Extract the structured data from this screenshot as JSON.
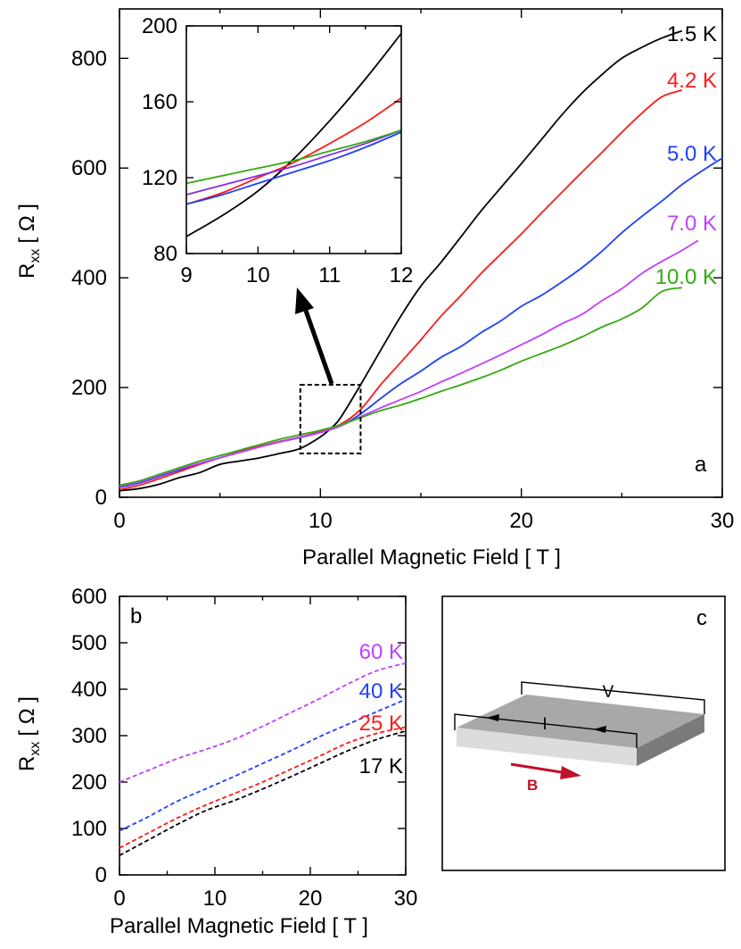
{
  "chart_data": [
    {
      "id": "a",
      "type": "line",
      "panel_letter": "a",
      "xlabel": "Parallel Magnetic Field [ T ]",
      "ylabel": "R_xx [ Ω ]",
      "ylabel_main": "R",
      "ylabel_sub": "xx",
      "ylabel_unit": "[ Ω ]",
      "xlim": [
        0,
        30
      ],
      "ylim": [
        0,
        890
      ],
      "xticks": [
        0,
        10,
        20,
        30
      ],
      "yticks": [
        0,
        200,
        400,
        600,
        800
      ],
      "annotation": {
        "type": "dashed-box-with-arrow",
        "box_x": [
          9,
          12
        ],
        "box_y": [
          80,
          205
        ]
      },
      "series": [
        {
          "name": "1.5 K",
          "color": "#000000",
          "x": [
            0,
            1,
            2,
            3,
            4,
            5,
            6,
            7,
            8,
            9,
            10,
            10.5,
            11,
            12,
            13,
            14,
            15,
            16,
            17,
            18,
            19,
            20,
            21,
            22,
            23,
            24,
            25,
            26,
            27,
            28
          ],
          "y": [
            12,
            16,
            24,
            36,
            45,
            60,
            66,
            72,
            80,
            89,
            110,
            125,
            145,
            205,
            268,
            330,
            385,
            428,
            475,
            522,
            565,
            608,
            652,
            696,
            736,
            770,
            800,
            820,
            837,
            850
          ]
        },
        {
          "name": "4.2 K",
          "color": "#ff1a1a",
          "x": [
            0,
            1,
            2,
            3,
            4,
            5,
            6,
            7,
            8,
            9,
            10,
            11,
            12,
            13,
            14,
            15,
            16,
            17,
            18,
            19,
            20,
            21,
            22,
            23,
            24,
            25,
            26,
            27,
            28
          ],
          "y": [
            14,
            22,
            34,
            47,
            60,
            72,
            83,
            93,
            102,
            110,
            120,
            133,
            160,
            205,
            246,
            287,
            330,
            368,
            408,
            444,
            480,
            518,
            555,
            592,
            628,
            665,
            700,
            730,
            742
          ]
        },
        {
          "name": "5.0 K",
          "color": "#2040ff",
          "x": [
            0,
            1,
            2,
            3,
            4,
            5,
            6,
            7,
            8,
            9,
            10,
            11,
            12,
            13,
            14,
            15,
            16,
            17,
            18,
            19,
            20,
            21,
            22,
            23,
            24,
            25,
            26,
            27,
            28,
            29,
            30
          ],
          "y": [
            18,
            26,
            38,
            50,
            62,
            72,
            82,
            92,
            101,
            109,
            118,
            130,
            152,
            180,
            207,
            230,
            255,
            275,
            300,
            322,
            348,
            368,
            392,
            418,
            448,
            482,
            512,
            540,
            570,
            595,
            618
          ]
        },
        {
          "name": "7.0 K",
          "color": "#c040ff",
          "x": [
            0,
            1,
            2,
            3,
            4,
            5,
            6,
            7,
            8,
            9,
            10,
            11,
            12,
            13,
            14,
            15,
            16,
            17,
            18,
            19,
            20,
            21,
            22,
            23,
            24,
            25,
            26,
            27,
            28,
            28.8
          ],
          "y": [
            20,
            28,
            40,
            52,
            62,
            72,
            82,
            92,
            101,
            110,
            118,
            130,
            147,
            163,
            178,
            193,
            210,
            226,
            243,
            260,
            278,
            296,
            316,
            333,
            358,
            380,
            408,
            430,
            450,
            468
          ]
        },
        {
          "name": "10.0 K",
          "color": "#33aa11",
          "x": [
            0,
            1,
            2,
            3,
            4,
            5,
            6,
            7,
            8,
            9,
            10,
            11,
            12,
            13,
            14,
            15,
            16,
            17,
            18,
            19,
            20,
            21,
            22,
            23,
            24,
            25,
            26,
            27,
            28
          ],
          "y": [
            22,
            30,
            42,
            54,
            66,
            76,
            86,
            96,
            106,
            114,
            122,
            132,
            145,
            158,
            168,
            180,
            193,
            205,
            218,
            232,
            248,
            262,
            276,
            292,
            310,
            325,
            345,
            375,
            382
          ]
        }
      ]
    },
    {
      "id": "a-inset",
      "type": "line",
      "xlim": [
        9,
        12
      ],
      "ylim": [
        80,
        200
      ],
      "xticks": [
        9,
        10,
        11,
        12
      ],
      "yticks": [
        80,
        120,
        160,
        200
      ],
      "series": [
        {
          "name": "1.5 K",
          "color": "#000000",
          "x": [
            9,
            9.5,
            10,
            10.5,
            11,
            11.5,
            12
          ],
          "y": [
            89,
            100,
            113,
            130,
            150,
            172,
            196
          ]
        },
        {
          "name": "4.2 K",
          "color": "#ff1a1a",
          "x": [
            9,
            9.5,
            10,
            10.5,
            11,
            11.5,
            12
          ],
          "y": [
            106,
            112,
            120,
            128,
            138,
            149,
            162
          ]
        },
        {
          "name": "5.0 K",
          "color": "#2040ff",
          "x": [
            9,
            9.5,
            10,
            10.5,
            11,
            11.5,
            12
          ],
          "y": [
            106,
            111,
            117,
            123,
            129,
            136,
            144
          ]
        },
        {
          "name": "7.0 K",
          "color": "#8a2be2",
          "x": [
            9,
            9.5,
            10,
            10.5,
            11,
            11.5,
            12
          ],
          "y": [
            111,
            116,
            121,
            126,
            132,
            138,
            145
          ]
        },
        {
          "name": "10.0 K",
          "color": "#33aa11",
          "x": [
            9,
            9.5,
            10,
            10.5,
            11,
            11.5,
            12
          ],
          "y": [
            117,
            121,
            125,
            129,
            134,
            139,
            145
          ]
        }
      ]
    },
    {
      "id": "b",
      "type": "line",
      "panel_letter": "b",
      "xlabel": "Parallel Magnetic Field [ T ]",
      "ylabel": "R_xx [ Ω ]",
      "ylabel_main": "R",
      "ylabel_sub": "xx",
      "ylabel_unit": "[ Ω ]",
      "xlim": [
        0,
        30
      ],
      "ylim": [
        0,
        600
      ],
      "xticks": [
        0,
        10,
        20,
        30
      ],
      "yticks": [
        0,
        100,
        200,
        300,
        400,
        500,
        600
      ],
      "series": [
        {
          "name": "60 K",
          "color": "#c040ff",
          "x": [
            0,
            3,
            6,
            9,
            12,
            15,
            18,
            21,
            24,
            27,
            30
          ],
          "y": [
            200,
            225,
            250,
            270,
            292,
            320,
            350,
            380,
            412,
            440,
            456
          ]
        },
        {
          "name": "40 K",
          "color": "#2040ff",
          "x": [
            0,
            3,
            6,
            9,
            12,
            15,
            18,
            21,
            24,
            27,
            30
          ],
          "y": [
            95,
            125,
            158,
            185,
            212,
            240,
            268,
            298,
            325,
            352,
            378
          ]
        },
        {
          "name": "25 K",
          "color": "#ff1a1a",
          "x": [
            0,
            3,
            6,
            9,
            12,
            15,
            18,
            21,
            24,
            27,
            30
          ],
          "y": [
            58,
            90,
            122,
            150,
            175,
            200,
            228,
            256,
            285,
            305,
            318
          ]
        },
        {
          "name": "17 K",
          "color": "#000000",
          "x": [
            0,
            3,
            6,
            9,
            12,
            15,
            18,
            21,
            24,
            27,
            30
          ],
          "y": [
            42,
            75,
            108,
            138,
            160,
            185,
            212,
            240,
            268,
            292,
            310
          ]
        }
      ]
    }
  ],
  "schematic": {
    "panel_letter": "c",
    "voltage_label": "V",
    "current_label": "I",
    "field_label": "B",
    "field_arrow_color": "#c0102a"
  }
}
